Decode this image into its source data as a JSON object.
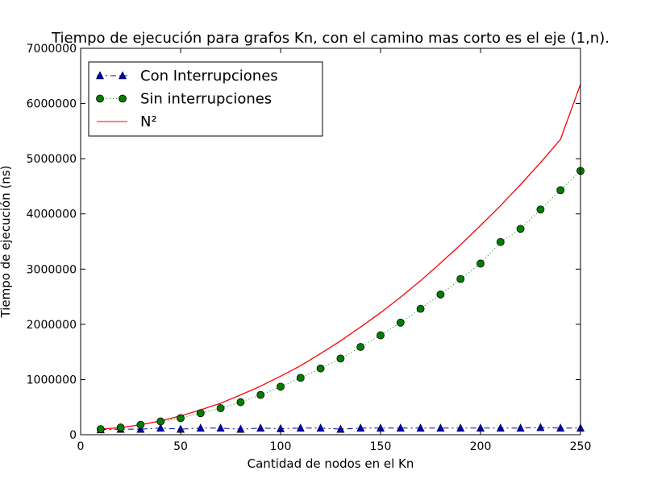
{
  "chart_data": {
    "type": "line",
    "title": "Tiempo de ejecución para grafos Kn, con el camino mas corto es el eje (1,n).",
    "xlabel": "Cantidad de nodos en el Kn",
    "ylabel": "Tiempo de ejecución (ns)",
    "xlim": [
      0,
      250
    ],
    "ylim": [
      0,
      7000000
    ],
    "xticks": [
      0,
      50,
      100,
      150,
      200,
      250
    ],
    "yticks": [
      0,
      1000000,
      2000000,
      3000000,
      4000000,
      5000000,
      6000000,
      7000000
    ],
    "grid": false,
    "legend_position": "upper-left",
    "series": [
      {
        "name": "Con Interrupciones",
        "color": "#0000bf",
        "line_style": "dash-dot",
        "marker": "triangle",
        "x": [
          10,
          20,
          30,
          40,
          50,
          60,
          70,
          80,
          90,
          100,
          110,
          120,
          130,
          140,
          150,
          160,
          170,
          180,
          190,
          200,
          210,
          220,
          230,
          240,
          250
        ],
        "y": [
          90000,
          100000,
          100000,
          120000,
          100000,
          120000,
          120000,
          100000,
          120000,
          110000,
          120000,
          120000,
          100000,
          120000,
          120000,
          120000,
          120000,
          120000,
          120000,
          120000,
          120000,
          120000,
          130000,
          120000,
          120000
        ]
      },
      {
        "name": "Sin interrupciones",
        "color": "#007f00",
        "line_style": "dotted",
        "marker": "circle",
        "x": [
          10,
          20,
          30,
          40,
          50,
          60,
          70,
          80,
          90,
          100,
          110,
          120,
          130,
          140,
          150,
          160,
          170,
          180,
          190,
          200,
          210,
          220,
          230,
          240,
          250
        ],
        "y": [
          100000,
          130000,
          180000,
          240000,
          300000,
          390000,
          480000,
          590000,
          720000,
          870000,
          1030000,
          1200000,
          1380000,
          1590000,
          1800000,
          2030000,
          2280000,
          2540000,
          2820000,
          3100000,
          3490000,
          3730000,
          4080000,
          4430000,
          4780000
        ]
      },
      {
        "name": "N²",
        "color": "#ff0000",
        "line_style": "solid",
        "marker": "none",
        "formula": "y = 100000 * (x/31.25)^2 approx (curve through 10..250)",
        "x": [
          10,
          20,
          30,
          40,
          50,
          60,
          70,
          80,
          90,
          100,
          110,
          120,
          130,
          140,
          150,
          160,
          170,
          180,
          190,
          200,
          210,
          220,
          230,
          240,
          250
        ],
        "y": [
          100000,
          130000,
          180000,
          250000,
          340000,
          450000,
          570000,
          720000,
          880000,
          1060000,
          1250000,
          1470000,
          1700000,
          1950000,
          2210000,
          2490000,
          2790000,
          3110000,
          3440000,
          3790000,
          4150000,
          4530000,
          4930000,
          5350000,
          6350000
        ]
      }
    ]
  }
}
